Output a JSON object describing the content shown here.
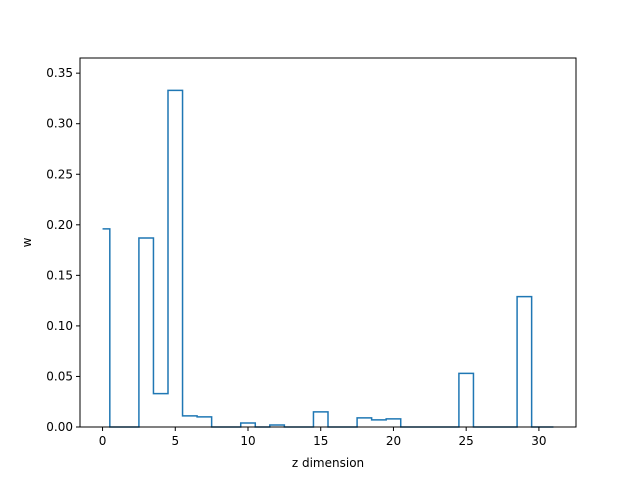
{
  "chart_data": {
    "type": "line",
    "drawstyle": "steps-mid",
    "title": "",
    "xlabel": "z dimension",
    "ylabel": "w",
    "xlim": [
      -1.55,
      32.55
    ],
    "ylim": [
      0.0,
      0.365
    ],
    "xticks": [
      0,
      5,
      10,
      15,
      20,
      25,
      30
    ],
    "yticks": [
      0.0,
      0.05,
      0.1,
      0.15,
      0.2,
      0.25,
      0.3,
      0.35
    ],
    "ytick_labels": [
      "0.00",
      "0.05",
      "0.10",
      "0.15",
      "0.20",
      "0.25",
      "0.30",
      "0.35"
    ],
    "grid": false,
    "series": [
      {
        "color": "#1f77b4",
        "x": [
          0,
          1,
          2,
          3,
          4,
          5,
          6,
          7,
          8,
          9,
          10,
          11,
          12,
          13,
          14,
          15,
          16,
          17,
          18,
          19,
          20,
          21,
          22,
          23,
          24,
          25,
          26,
          27,
          28,
          29,
          30,
          31
        ],
        "values": [
          0.196,
          0.0,
          0.0,
          0.187,
          0.033,
          0.333,
          0.011,
          0.01,
          0.0,
          0.0,
          0.004,
          0.0,
          0.002,
          0.0,
          0.0,
          0.015,
          0.0,
          0.0,
          0.009,
          0.007,
          0.008,
          0.0,
          0.0,
          0.0,
          0.0,
          0.053,
          0.0,
          0.0,
          0.0,
          0.129,
          0.0,
          0.0
        ]
      }
    ]
  }
}
